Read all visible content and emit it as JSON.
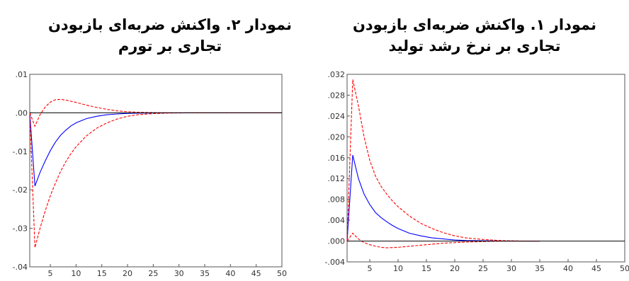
{
  "chart_data": [
    {
      "type": "line",
      "title": [
        "نمودار ۲. واکنش ضربه‌ای بازبودن",
        "تجاری بر تورم"
      ],
      "xlim": [
        1,
        50
      ],
      "ylim": [
        -0.04,
        0.01
      ],
      "xticks": [
        5,
        10,
        15,
        20,
        25,
        30,
        35,
        40,
        45,
        50
      ],
      "xtick_labels": [
        "5",
        "10",
        "15",
        "20",
        "25",
        "30",
        "35",
        "40",
        "45",
        "50"
      ],
      "yticks": [
        0.01,
        0.0,
        -0.01,
        -0.02,
        -0.03,
        -0.04
      ],
      "ytick_labels": [
        ".01",
        ".00",
        "-.01",
        "-.02",
        "-.03",
        "-.04"
      ],
      "grid": false,
      "series": [
        {
          "role": "response",
          "color": "#0000ff",
          "dashed": false,
          "x": [
            1,
            2,
            3,
            4,
            5,
            6,
            7,
            8,
            9,
            10,
            12,
            14,
            16,
            18,
            20,
            22,
            25,
            28,
            32,
            40,
            50
          ],
          "y": [
            0.0,
            -0.019,
            -0.0155,
            -0.0125,
            -0.0098,
            -0.0076,
            -0.0058,
            -0.0045,
            -0.0034,
            -0.0026,
            -0.0015,
            -0.0009,
            -0.0005,
            -0.0003,
            -0.00015,
            -8e-05,
            -3e-05,
            0.0,
            0.0,
            0.0,
            0.0
          ]
        },
        {
          "role": "band-upper",
          "color": "#ff0000",
          "dashed": true,
          "x": [
            1,
            2,
            3,
            4,
            5,
            6,
            7,
            8,
            10,
            12,
            14,
            16,
            18,
            20,
            22,
            25,
            28,
            32,
            40,
            50
          ],
          "y": [
            0.0,
            -0.0035,
            -0.0005,
            0.0015,
            0.0028,
            0.0034,
            0.0035,
            0.0033,
            0.0027,
            0.002,
            0.0014,
            0.0009,
            0.0005,
            0.0003,
            0.00015,
            5e-05,
            0.0,
            0.0,
            0.0,
            0.0
          ]
        },
        {
          "role": "band-lower",
          "color": "#ff0000",
          "dashed": true,
          "x": [
            1,
            2,
            3,
            4,
            5,
            6,
            7,
            8,
            9,
            10,
            12,
            14,
            16,
            18,
            20,
            22,
            25,
            28,
            32,
            40,
            50
          ],
          "y": [
            0.0,
            -0.035,
            -0.03,
            -0.0255,
            -0.0215,
            -0.0182,
            -0.0152,
            -0.0127,
            -0.0106,
            -0.0088,
            -0.006,
            -0.004,
            -0.0026,
            -0.0016,
            -0.0009,
            -0.0005,
            -0.0002,
            -5e-05,
            0.0,
            0.0,
            0.0
          ]
        },
        {
          "role": "zero-line",
          "color": "#000000",
          "dashed": false,
          "x": [
            1,
            50
          ],
          "y": [
            0.0,
            0.0
          ]
        }
      ]
    },
    {
      "type": "line",
      "title": [
        "نمودار ۱. واکنش ضربه‌ای بازبودن",
        "تجاری بر نرخ رشد تولید"
      ],
      "xlim": [
        1,
        50
      ],
      "ylim": [
        -0.004,
        0.032
      ],
      "xticks": [
        5,
        10,
        15,
        20,
        25,
        30,
        35,
        40,
        45,
        50
      ],
      "xtick_labels": [
        "5",
        "10",
        "15",
        "20",
        "25",
        "30",
        "35",
        "40",
        "45",
        "50"
      ],
      "yticks": [
        0.032,
        0.028,
        0.024,
        0.02,
        0.016,
        0.012,
        0.008,
        0.004,
        0.0,
        -0.004
      ],
      "ytick_labels": [
        ".032",
        ".028",
        ".024",
        ".020",
        ".016",
        ".012",
        ".008",
        ".004",
        ".000",
        "-.004"
      ],
      "grid": false,
      "series": [
        {
          "role": "response",
          "color": "#0000ff",
          "dashed": false,
          "x": [
            1,
            2,
            3,
            4,
            5,
            6,
            7,
            8,
            9,
            10,
            12,
            14,
            16,
            18,
            20,
            22,
            25,
            28,
            32,
            35
          ],
          "y": [
            0.0,
            0.0165,
            0.012,
            0.009,
            0.007,
            0.0055,
            0.0045,
            0.0037,
            0.003,
            0.0024,
            0.0015,
            0.001,
            0.0006,
            0.0004,
            0.0002,
            0.0001,
            5e-05,
            0.0,
            0.0,
            0.0
          ]
        },
        {
          "role": "band-upper",
          "color": "#ff0000",
          "dashed": true,
          "x": [
            1,
            2,
            3,
            4,
            5,
            6,
            7,
            8,
            9,
            10,
            12,
            14,
            16,
            18,
            20,
            22,
            25,
            28,
            32,
            35
          ],
          "y": [
            0.0,
            0.031,
            0.026,
            0.02,
            0.0155,
            0.0125,
            0.0105,
            0.009,
            0.0077,
            0.0066,
            0.0048,
            0.0034,
            0.0024,
            0.0016,
            0.001,
            0.0006,
            0.0003,
            0.0001,
            0.0,
            0.0
          ]
        },
        {
          "role": "band-lower",
          "color": "#ff0000",
          "dashed": true,
          "x": [
            1,
            2,
            3,
            4,
            5,
            6,
            7,
            8,
            10,
            12,
            14,
            16,
            18,
            20,
            22,
            25,
            28,
            32,
            35
          ],
          "y": [
            0.0,
            0.0015,
            0.0004,
            -0.0003,
            -0.0007,
            -0.001,
            -0.0012,
            -0.0013,
            -0.0012,
            -0.001,
            -0.0008,
            -0.0006,
            -0.0004,
            -0.0003,
            -0.0002,
            -0.0001,
            0.0,
            0.0,
            0.0
          ]
        },
        {
          "role": "zero-line",
          "color": "#000000",
          "dashed": false,
          "x": [
            1,
            50
          ],
          "y": [
            0.0,
            0.0
          ]
        }
      ]
    }
  ]
}
